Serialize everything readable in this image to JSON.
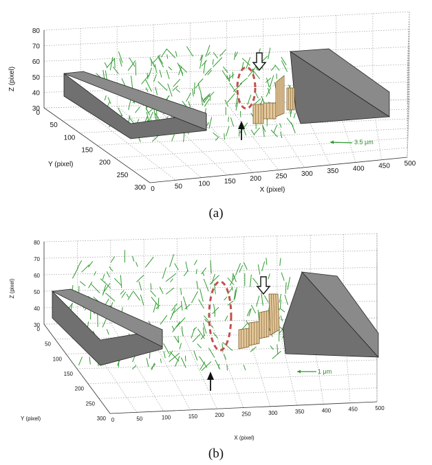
{
  "chart_data": [
    {
      "panel": "(a)",
      "type": "scatter",
      "xlabel": "X (pixel)",
      "ylabel": "Y (pixel)",
      "zlabel": "Z (pixel)",
      "xticks": [
        "0",
        "50",
        "100",
        "150",
        "200",
        "250",
        "300",
        "350",
        "400",
        "450",
        "500"
      ],
      "yticks": [
        "0",
        "50",
        "100",
        "150",
        "200",
        "250",
        "300"
      ],
      "zticks": [
        "30",
        "40",
        "50",
        "60",
        "70",
        "80"
      ],
      "xlim": [
        0,
        500
      ],
      "ylim": [
        0,
        300
      ],
      "zlim": [
        30,
        80
      ],
      "scale_label": "3.5 μm",
      "grid": true,
      "colors": {
        "vectors": "#2e9a2e",
        "electrodes": "#6b6b6b",
        "wall": "#e3c79a",
        "ellipse": "#c0504d"
      }
    },
    {
      "panel": "(b)",
      "type": "scatter",
      "xlabel": "X (pixel)",
      "ylabel": "Y (pixel)",
      "zlabel": "Z (pixel)",
      "xticks": [
        "0",
        "50",
        "100",
        "150",
        "200",
        "250",
        "300",
        "350",
        "400",
        "450",
        "500"
      ],
      "yticks": [
        "0",
        "50",
        "100",
        "150",
        "200",
        "250",
        "300"
      ],
      "zticks": [
        "30",
        "40",
        "50",
        "60",
        "70",
        "80"
      ],
      "xlim": [
        0,
        500
      ],
      "ylim": [
        0,
        300
      ],
      "zlim": [
        30,
        80
      ],
      "scale_label": "1 μm",
      "grid": true,
      "colors": {
        "vectors": "#2e9a2e",
        "electrodes": "#6b6b6b",
        "wall": "#e3c79a",
        "ellipse": "#c0504d"
      }
    }
  ],
  "captions": [
    "(a)",
    "(b)"
  ]
}
